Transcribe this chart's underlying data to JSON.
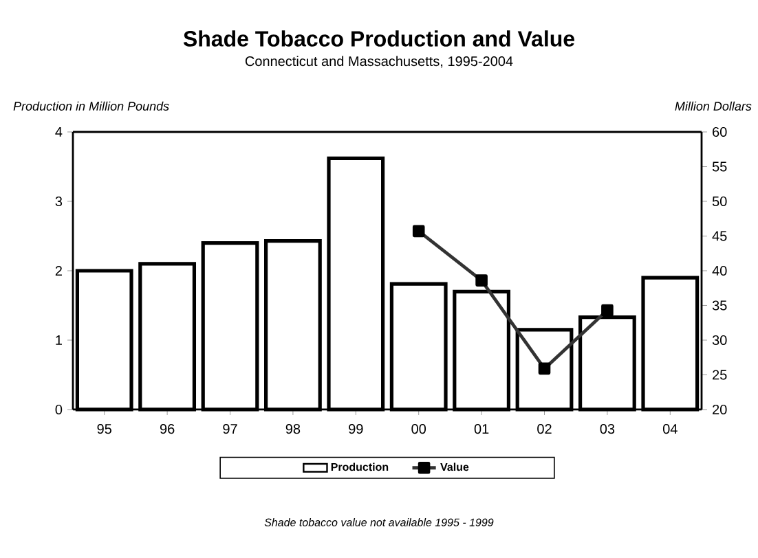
{
  "chart_data": {
    "type": "bar",
    "title": "Shade Tobacco Production and Value",
    "subtitle": "Connecticut and Massachusetts, 1995-2004",
    "ylabel": "Production in Million Pounds",
    "y2label": "Million Dollars",
    "annotations": [
      "Shade tobacco value not available 1995 - 1999"
    ],
    "categories": [
      "95",
      "96",
      "97",
      "98",
      "99",
      "00",
      "01",
      "02",
      "03",
      "04"
    ],
    "series": [
      {
        "name": "Production",
        "color": "#ffffff",
        "values": [
          2.0,
          2.1,
          2.4,
          2.43,
          3.62,
          1.81,
          1.7,
          1.15,
          1.33,
          1.9
        ]
      },
      {
        "name": "Value",
        "type": "line",
        "axis": "y2",
        "color": "#333333",
        "marker": "square",
        "values": [
          null,
          null,
          null,
          null,
          null,
          45.7,
          38.6,
          25.9,
          34.3,
          null
        ]
      }
    ],
    "ylim": [
      0,
      4
    ],
    "yticks": [
      0,
      1,
      2,
      3,
      4
    ],
    "y2lim": [
      20,
      60
    ],
    "y2ticks": [
      20,
      25,
      30,
      35,
      40,
      45,
      50,
      55,
      60
    ],
    "grid": false,
    "legend": "bottom"
  }
}
